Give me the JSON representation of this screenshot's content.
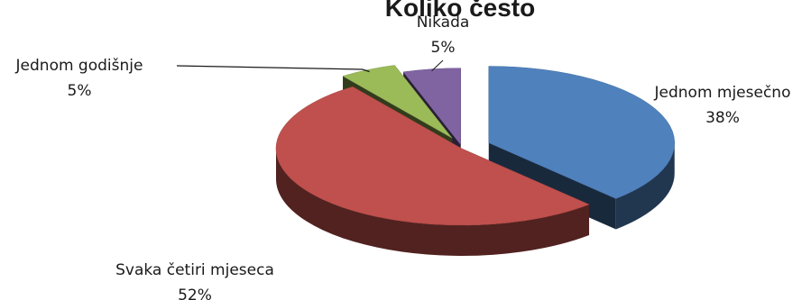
{
  "chart_data": {
    "type": "pie",
    "title": "Koliko često",
    "categories": [
      "Jednom mjesečno",
      "Svaka četiri mjeseca",
      "Jednom godišnje",
      "Nikada"
    ],
    "values": [
      38,
      52,
      5,
      5
    ],
    "value_labels": [
      "38%",
      "52%",
      "5%",
      "5%"
    ],
    "colors": {
      "Jednom mjesečno": "#4f81bd",
      "Svaka četiri mjeseca": "#c0504d",
      "Jednom godišnje": "#9bbb59",
      "Nikada": "#8064a2"
    },
    "three_d": true,
    "exploded": true,
    "legend": "none"
  }
}
